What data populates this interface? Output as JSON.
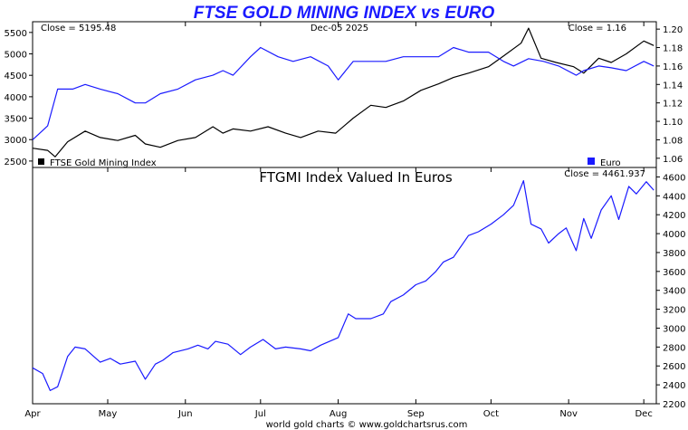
{
  "title": "FTSE GOLD MINING INDEX vs EURO",
  "footer": "world gold charts © www.goldchartsrus.com",
  "colors": {
    "ftse": "#000000",
    "euro": "#1a1aff",
    "ratio": "#1a1aff"
  },
  "x_labels": [
    "Apr",
    "May",
    "Jun",
    "Jul",
    "Aug",
    "Sep",
    "Oct",
    "Nov",
    "Dec"
  ],
  "chart_data": [
    {
      "type": "line",
      "date_label": "Dec-05  2025",
      "left_close": "Close = 5195.48",
      "right_close": "Close = 1.16",
      "legend_left": "FTSE Gold Mining Index",
      "legend_right": "Euro",
      "legend_placement": "bottom",
      "y_left_lim": [
        2350,
        5750
      ],
      "y_left_ticks": [
        2500,
        3000,
        3500,
        4000,
        4500,
        5000,
        5500
      ],
      "y_right_lim": [
        1.05,
        1.208
      ],
      "y_right_ticks": [
        1.06,
        1.08,
        1.1,
        1.12,
        1.14,
        1.16,
        1.18,
        1.2
      ],
      "grid": false,
      "series": [
        {
          "name": "FTSE Gold Mining Index",
          "axis": "left",
          "x": [
            "Apr-01",
            "Apr-07",
            "Apr-10",
            "Apr-15",
            "Apr-22",
            "Apr-28",
            "May-05",
            "May-12",
            "May-16",
            "May-22",
            "May-29",
            "Jun-05",
            "Jun-12",
            "Jun-16",
            "Jun-20",
            "Jun-27",
            "Jul-04",
            "Jul-11",
            "Jul-17",
            "Jul-24",
            "Jul-31",
            "Aug-07",
            "Aug-14",
            "Aug-20",
            "Aug-27",
            "Sep-03",
            "Sep-10",
            "Sep-16",
            "Sep-22",
            "Sep-30",
            "Oct-06",
            "Oct-13",
            "Oct-16",
            "Oct-21",
            "Oct-27",
            "Nov-03",
            "Nov-07",
            "Nov-13",
            "Nov-18",
            "Nov-24",
            "Dec-01",
            "Dec-05"
          ],
          "y": [
            2800,
            2750,
            2600,
            2950,
            3200,
            3050,
            2980,
            3100,
            2900,
            2820,
            2980,
            3050,
            3300,
            3150,
            3250,
            3200,
            3300,
            3150,
            3050,
            3200,
            3150,
            3500,
            3800,
            3750,
            3900,
            4150,
            4300,
            4450,
            4550,
            4700,
            4950,
            5250,
            5600,
            4900,
            4800,
            4700,
            4550,
            4900,
            4800,
            5000,
            5300,
            5195
          ]
        },
        {
          "name": "Euro",
          "axis": "right",
          "x": [
            "Apr-01",
            "Apr-07",
            "Apr-11",
            "Apr-17",
            "Apr-22",
            "Apr-28",
            "May-05",
            "May-12",
            "May-16",
            "May-22",
            "May-29",
            "Jun-05",
            "Jun-12",
            "Jun-16",
            "Jun-20",
            "Jun-27",
            "Jul-01",
            "Jul-08",
            "Jul-14",
            "Jul-21",
            "Jul-28",
            "Aug-01",
            "Aug-07",
            "Aug-14",
            "Aug-20",
            "Aug-27",
            "Sep-03",
            "Sep-10",
            "Sep-16",
            "Sep-22",
            "Sep-30",
            "Oct-06",
            "Oct-10",
            "Oct-16",
            "Oct-22",
            "Oct-28",
            "Nov-04",
            "Nov-07",
            "Nov-13",
            "Nov-18",
            "Nov-24",
            "Dec-01",
            "Dec-05"
          ],
          "y": [
            1.08,
            1.095,
            1.135,
            1.135,
            1.14,
            1.135,
            1.13,
            1.12,
            1.12,
            1.13,
            1.135,
            1.145,
            1.15,
            1.155,
            1.15,
            1.17,
            1.18,
            1.17,
            1.165,
            1.17,
            1.16,
            1.145,
            1.165,
            1.165,
            1.165,
            1.17,
            1.17,
            1.17,
            1.18,
            1.175,
            1.175,
            1.165,
            1.16,
            1.168,
            1.165,
            1.16,
            1.15,
            1.155,
            1.16,
            1.158,
            1.155,
            1.165,
            1.16
          ]
        }
      ]
    },
    {
      "type": "line",
      "title": "FTGMI Index Valued In Euros",
      "right_close": "Close = 4461.937",
      "y_lim": [
        2200,
        4700
      ],
      "y_ticks": [
        2200,
        2400,
        2600,
        2800,
        3000,
        3200,
        3400,
        3600,
        3800,
        4000,
        4200,
        4400,
        4600
      ],
      "grid": false,
      "series": [
        {
          "name": "FTGMI Index Valued In Euros",
          "x": [
            "Apr-01",
            "Apr-05",
            "Apr-08",
            "Apr-11",
            "Apr-15",
            "Apr-18",
            "Apr-22",
            "Apr-28",
            "May-02",
            "May-06",
            "May-12",
            "May-16",
            "May-20",
            "May-23",
            "May-27",
            "Jun-02",
            "Jun-06",
            "Jun-10",
            "Jun-13",
            "Jun-18",
            "Jun-23",
            "Jun-27",
            "Jul-02",
            "Jul-07",
            "Jul-11",
            "Jul-17",
            "Jul-21",
            "Jul-25",
            "Aug-01",
            "Aug-05",
            "Aug-08",
            "Aug-14",
            "Aug-19",
            "Aug-22",
            "Aug-27",
            "Sep-01",
            "Sep-05",
            "Sep-09",
            "Sep-12",
            "Sep-16",
            "Sep-22",
            "Sep-26",
            "Oct-01",
            "Oct-06",
            "Oct-10",
            "Oct-14",
            "Oct-17",
            "Oct-21",
            "Oct-24",
            "Oct-28",
            "Oct-31",
            "Nov-04",
            "Nov-07",
            "Nov-10",
            "Nov-14",
            "Nov-18",
            "Nov-21",
            "Nov-25",
            "Nov-28",
            "Dec-02",
            "Dec-05"
          ],
          "y": [
            2580,
            2520,
            2340,
            2380,
            2700,
            2800,
            2780,
            2640,
            2680,
            2620,
            2650,
            2460,
            2620,
            2660,
            2740,
            2780,
            2820,
            2780,
            2860,
            2830,
            2720,
            2800,
            2880,
            2780,
            2800,
            2780,
            2760,
            2820,
            2900,
            3150,
            3100,
            3100,
            3150,
            3280,
            3350,
            3460,
            3500,
            3600,
            3700,
            3750,
            3980,
            4020,
            4100,
            4200,
            4300,
            4560,
            4100,
            4050,
            3900,
            4000,
            4060,
            3820,
            4160,
            3950,
            4250,
            4400,
            4150,
            4500,
            4420,
            4550,
            4460
          ]
        }
      ]
    }
  ]
}
